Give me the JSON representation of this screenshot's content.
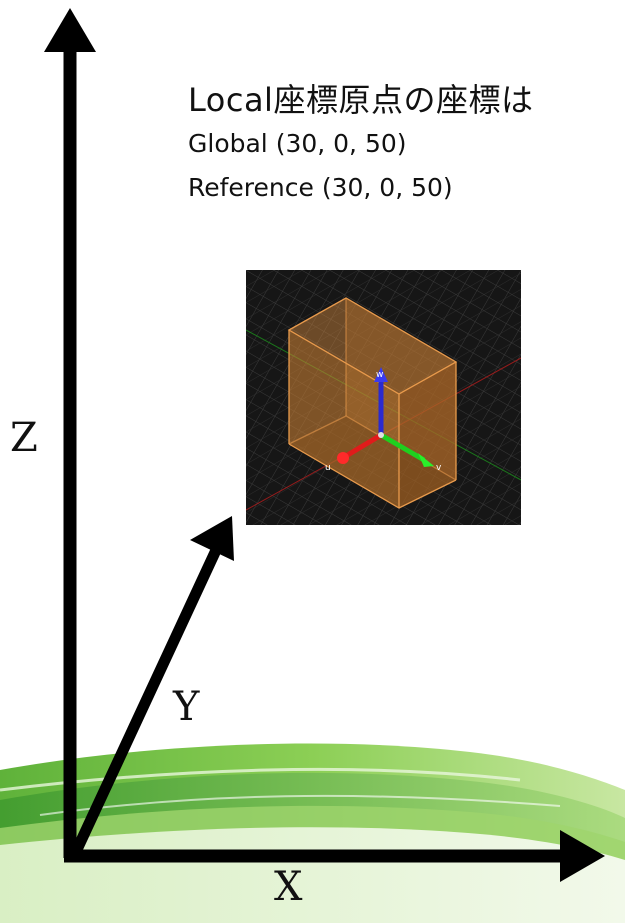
{
  "info": {
    "title": "Local座標原点の座標は",
    "global_label": "Global (30, 0, 50)",
    "reference_label": "Reference (30, 0, 50)"
  },
  "axes": {
    "x_label": "X",
    "y_label": "Y",
    "z_label": "Z"
  },
  "viewport": {
    "u_label": "u",
    "v_label": "v",
    "w_label": "w"
  },
  "colors": {
    "axis_stroke": "#000000",
    "box_fill": "#c07a33",
    "box_edge": "#e79a4c",
    "u_axis": "#e01b1b",
    "v_axis": "#1fcf1f",
    "w_axis": "#2a2ad0",
    "viewport_bg": "#161616",
    "wave_green": "#7cc34a"
  }
}
